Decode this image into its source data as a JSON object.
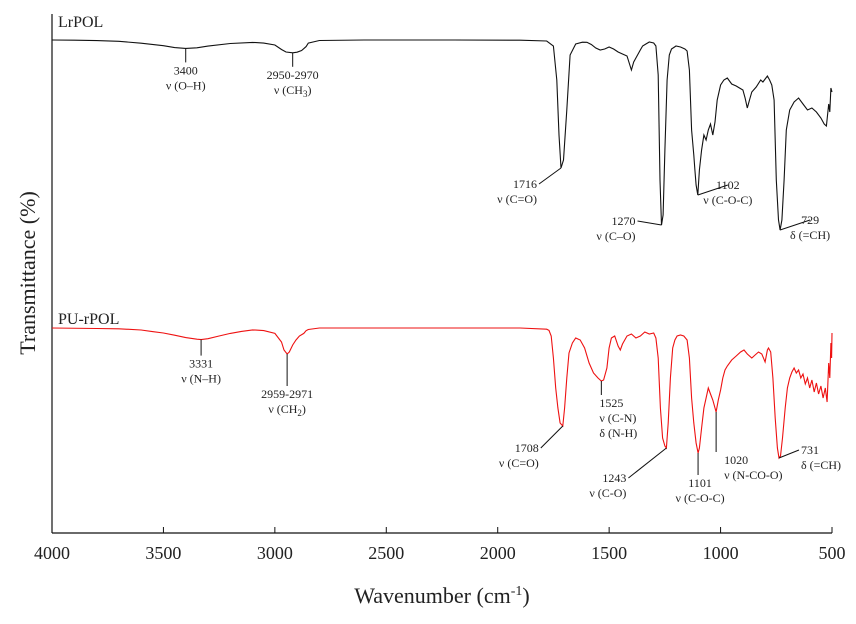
{
  "chart_data": {
    "type": "line",
    "xlabel": "Wavenumber (cm",
    "xlabel_sup": "-1",
    "xlabel_end": ")",
    "ylabel": "Transmittance (%)",
    "xlim": [
      4000,
      500
    ],
    "x_reversed": true,
    "xticks": [
      4000,
      3500,
      3000,
      2500,
      2000,
      1500,
      1000,
      500
    ],
    "colors": {
      "LrPOL": "#111111",
      "PU-rPOL": "#ee1111"
    },
    "series": [
      {
        "name": "LrPOL",
        "color": "#111111",
        "points": [
          [
            4000,
            0.0
          ],
          [
            3900,
            0.2
          ],
          [
            3800,
            0.6
          ],
          [
            3700,
            1.3
          ],
          [
            3600,
            3.2
          ],
          [
            3500,
            5.7
          ],
          [
            3450,
            7.6
          ],
          [
            3400,
            8.4
          ],
          [
            3350,
            7.8
          ],
          [
            3300,
            6.1
          ],
          [
            3200,
            3.5
          ],
          [
            3100,
            2.4
          ],
          [
            3050,
            3.1
          ],
          [
            3000,
            5.0
          ],
          [
            2970,
            9.5
          ],
          [
            2950,
            12.0
          ],
          [
            2920,
            12.8
          ],
          [
            2900,
            12.2
          ],
          [
            2880,
            10.5
          ],
          [
            2860,
            6.6
          ],
          [
            2850,
            3.1
          ],
          [
            2800,
            0.5
          ],
          [
            2600,
            0.0
          ],
          [
            2200,
            0.0
          ],
          [
            1900,
            0.2
          ],
          [
            1780,
            1.0
          ],
          [
            1750,
            6.0
          ],
          [
            1735,
            40.0
          ],
          [
            1725,
            95.0
          ],
          [
            1716,
            128.0
          ],
          [
            1705,
            120.0
          ],
          [
            1690,
            70.0
          ],
          [
            1675,
            15.0
          ],
          [
            1650,
            4.0
          ],
          [
            1620,
            2.2
          ],
          [
            1600,
            2.3
          ],
          [
            1580,
            4.5
          ],
          [
            1560,
            8.0
          ],
          [
            1540,
            10.0
          ],
          [
            1520,
            9.0
          ],
          [
            1500,
            7.0
          ],
          [
            1480,
            9.0
          ],
          [
            1460,
            12.0
          ],
          [
            1440,
            14.0
          ],
          [
            1420,
            16.0
          ],
          [
            1400,
            30.0
          ],
          [
            1390,
            22.0
          ],
          [
            1380,
            18.0
          ],
          [
            1360,
            10.0
          ],
          [
            1350,
            6.0
          ],
          [
            1335,
            4.0
          ],
          [
            1320,
            2.0
          ],
          [
            1300,
            3.0
          ],
          [
            1290,
            6.0
          ],
          [
            1280,
            35.0
          ],
          [
            1272,
            140.0
          ],
          [
            1265,
            185.0
          ],
          [
            1258,
            175.0
          ],
          [
            1250,
            110.0
          ],
          [
            1240,
            40.0
          ],
          [
            1230,
            15.0
          ],
          [
            1220,
            9.0
          ],
          [
            1200,
            6.0
          ],
          [
            1180,
            7.0
          ],
          [
            1160,
            9.0
          ],
          [
            1150,
            11.0
          ],
          [
            1140,
            30.0
          ],
          [
            1130,
            90.0
          ],
          [
            1120,
            115.0
          ],
          [
            1115,
            130.0
          ],
          [
            1110,
            145.0
          ],
          [
            1102,
            155.0
          ],
          [
            1095,
            130.0
          ],
          [
            1085,
            110.0
          ],
          [
            1075,
            95.0
          ],
          [
            1065,
            100.0
          ],
          [
            1055,
            90.0
          ],
          [
            1045,
            84.0
          ],
          [
            1035,
            95.0
          ],
          [
            1025,
            82.0
          ],
          [
            1015,
            60.0
          ],
          [
            1000,
            45.0
          ],
          [
            985,
            40.0
          ],
          [
            970,
            38.0
          ],
          [
            950,
            44.0
          ],
          [
            930,
            46.0
          ],
          [
            915,
            48.0
          ],
          [
            900,
            50.0
          ],
          [
            890,
            58.0
          ],
          [
            880,
            68.0
          ],
          [
            870,
            60.0
          ],
          [
            860,
            52.0
          ],
          [
            840,
            47.0
          ],
          [
            820,
            40.0
          ],
          [
            810,
            42.0
          ],
          [
            790,
            36.0
          ],
          [
            780,
            40.0
          ],
          [
            770,
            45.0
          ],
          [
            760,
            60.0
          ],
          [
            750,
            140.0
          ],
          [
            740,
            180.0
          ],
          [
            733,
            190.0
          ],
          [
            725,
            180.0
          ],
          [
            715,
            140.0
          ],
          [
            705,
            90.0
          ],
          [
            690,
            70.0
          ],
          [
            670,
            62.0
          ],
          [
            650,
            58.0
          ],
          [
            630,
            64.0
          ],
          [
            610,
            70.0
          ],
          [
            590,
            68.0
          ],
          [
            570,
            72.0
          ],
          [
            550,
            78.0
          ],
          [
            535,
            84.0
          ],
          [
            525,
            86.0
          ],
          [
            515,
            64.0
          ],
          [
            510,
            72.0
          ],
          [
            505,
            48.0
          ],
          [
            500,
            52.0
          ]
        ]
      },
      {
        "name": "PU-rPOL",
        "color": "#ee1111",
        "points": [
          [
            4000,
            0.0
          ],
          [
            3800,
            0.5
          ],
          [
            3700,
            0.8
          ],
          [
            3600,
            2.0
          ],
          [
            3550,
            3.6
          ],
          [
            3500,
            5.0
          ],
          [
            3450,
            7.2
          ],
          [
            3400,
            9.6
          ],
          [
            3350,
            11.2
          ],
          [
            3331,
            11.6
          ],
          [
            3300,
            10.7
          ],
          [
            3250,
            8.0
          ],
          [
            3200,
            5.4
          ],
          [
            3150,
            3.4
          ],
          [
            3100,
            1.9
          ],
          [
            3050,
            2.6
          ],
          [
            3000,
            5.4
          ],
          [
            2970,
            14.0
          ],
          [
            2959,
            22.0
          ],
          [
            2945,
            26.0
          ],
          [
            2935,
            24.0
          ],
          [
            2920,
            17.0
          ],
          [
            2905,
            12.0
          ],
          [
            2890,
            8.0
          ],
          [
            2870,
            5.4
          ],
          [
            2860,
            2.7
          ],
          [
            2850,
            1.5
          ],
          [
            2800,
            0.0
          ],
          [
            2500,
            0.0
          ],
          [
            2100,
            0.0
          ],
          [
            1900,
            0.0
          ],
          [
            1780,
            1.2
          ],
          [
            1770,
            2.4
          ],
          [
            1760,
            8.0
          ],
          [
            1750,
            30.0
          ],
          [
            1740,
            60.0
          ],
          [
            1730,
            80.0
          ],
          [
            1720,
            95.0
          ],
          [
            1708,
            98.0
          ],
          [
            1700,
            80.0
          ],
          [
            1690,
            50.0
          ],
          [
            1680,
            25.0
          ],
          [
            1665,
            15.0
          ],
          [
            1650,
            10.0
          ],
          [
            1630,
            12.0
          ],
          [
            1610,
            20.0
          ],
          [
            1590,
            35.0
          ],
          [
            1570,
            45.0
          ],
          [
            1550,
            50.0
          ],
          [
            1535,
            53.0
          ],
          [
            1525,
            52.0
          ],
          [
            1510,
            40.0
          ],
          [
            1500,
            20.0
          ],
          [
            1490,
            10.0
          ],
          [
            1475,
            8.0
          ],
          [
            1460,
            18.0
          ],
          [
            1450,
            22.0
          ],
          [
            1440,
            16.0
          ],
          [
            1420,
            8.0
          ],
          [
            1400,
            6.0
          ],
          [
            1380,
            10.0
          ],
          [
            1360,
            8.0
          ],
          [
            1340,
            4.0
          ],
          [
            1320,
            6.0
          ],
          [
            1300,
            5.0
          ],
          [
            1290,
            10.0
          ],
          [
            1280,
            30.0
          ],
          [
            1270,
            80.0
          ],
          [
            1260,
            110.0
          ],
          [
            1250,
            118.0
          ],
          [
            1243,
            120.0
          ],
          [
            1235,
            95.0
          ],
          [
            1225,
            50.0
          ],
          [
            1215,
            20.0
          ],
          [
            1205,
            12.0
          ],
          [
            1195,
            8.0
          ],
          [
            1180,
            7.0
          ],
          [
            1165,
            8.0
          ],
          [
            1150,
            12.0
          ],
          [
            1140,
            30.0
          ],
          [
            1130,
            70.0
          ],
          [
            1120,
            95.0
          ],
          [
            1110,
            115.0
          ],
          [
            1101,
            125.0
          ],
          [
            1095,
            120.0
          ],
          [
            1085,
            100.0
          ],
          [
            1075,
            80.0
          ],
          [
            1065,
            70.0
          ],
          [
            1055,
            60.0
          ],
          [
            1045,
            66.0
          ],
          [
            1035,
            72.0
          ],
          [
            1025,
            80.0
          ],
          [
            1020,
            84.0
          ],
          [
            1010,
            72.0
          ],
          [
            1000,
            62.0
          ],
          [
            990,
            50.0
          ],
          [
            980,
            42.0
          ],
          [
            970,
            38.0
          ],
          [
            950,
            32.0
          ],
          [
            930,
            28.0
          ],
          [
            910,
            24.0
          ],
          [
            895,
            22.0
          ],
          [
            880,
            26.0
          ],
          [
            860,
            30.0
          ],
          [
            845,
            27.0
          ],
          [
            830,
            24.0
          ],
          [
            815,
            26.0
          ],
          [
            800,
            34.0
          ],
          [
            790,
            22.0
          ],
          [
            785,
            20.0
          ],
          [
            775,
            24.0
          ],
          [
            765,
            50.0
          ],
          [
            755,
            90.0
          ],
          [
            745,
            120.0
          ],
          [
            738,
            130.0
          ],
          [
            731,
            128.0
          ],
          [
            722,
            110.0
          ],
          [
            710,
            80.0
          ],
          [
            700,
            60.0
          ],
          [
            690,
            50.0
          ],
          [
            680,
            44.0
          ],
          [
            670,
            40.0
          ],
          [
            660,
            45.0
          ],
          [
            650,
            42.0
          ],
          [
            640,
            50.0
          ],
          [
            630,
            46.0
          ],
          [
            620,
            56.0
          ],
          [
            610,
            50.0
          ],
          [
            600,
            60.0
          ],
          [
            590,
            52.0
          ],
          [
            580,
            64.0
          ],
          [
            570,
            55.0
          ],
          [
            560,
            66.0
          ],
          [
            550,
            58.0
          ],
          [
            540,
            70.0
          ],
          [
            530,
            60.0
          ],
          [
            522,
            74.0
          ],
          [
            515,
            35.0
          ],
          [
            510,
            50.0
          ],
          [
            505,
            15.0
          ],
          [
            502,
            30.0
          ],
          [
            500,
            5.0
          ]
        ]
      }
    ],
    "annotations": [
      {
        "series": "LrPOL",
        "peak": 3400,
        "lines": [
          "3400",
          "ν (O–H)"
        ]
      },
      {
        "series": "LrPOL",
        "peak": 2920,
        "lines": [
          "2950-2970",
          "ν (CH",
          "3",
          ")"
        ],
        "subscript": true
      },
      {
        "series": "LrPOL",
        "peak": 1716,
        "lines": [
          "1716",
          "ν (C=O)"
        ]
      },
      {
        "series": "LrPOL",
        "peak": 1265,
        "lines": [
          "1270",
          "ν (C–O)"
        ]
      },
      {
        "series": "LrPOL",
        "peak": 1102,
        "lines": [
          "1102",
          "ν (C-O-C)"
        ]
      },
      {
        "series": "LrPOL",
        "peak": 733,
        "lines": [
          "729",
          "δ (=CH)"
        ]
      },
      {
        "series": "PU-rPOL",
        "peak": 3331,
        "lines": [
          "3331",
          "ν (N–H)"
        ]
      },
      {
        "series": "PU-rPOL",
        "peak": 2945,
        "lines": [
          "2959-2971",
          "ν (CH",
          "2",
          ")"
        ],
        "subscript": true
      },
      {
        "series": "PU-rPOL",
        "peak": 1708,
        "lines": [
          "1708",
          "ν (C=O)"
        ]
      },
      {
        "series": "PU-rPOL",
        "peak": 1535,
        "lines": [
          "1525",
          "ν (C-N)",
          "δ (N-H)"
        ]
      },
      {
        "series": "PU-rPOL",
        "peak": 1243,
        "lines": [
          "1243",
          "ν (C-O)"
        ]
      },
      {
        "series": "PU-rPOL",
        "peak": 1101,
        "lines": [
          "1101",
          "ν (C-O-C)"
        ]
      },
      {
        "series": "PU-rPOL",
        "peak": 1020,
        "lines": [
          "1020",
          "ν (N-CO-O)"
        ]
      },
      {
        "series": "PU-rPOL",
        "peak": 738,
        "lines": [
          "731",
          "δ (=CH)"
        ]
      }
    ]
  }
}
